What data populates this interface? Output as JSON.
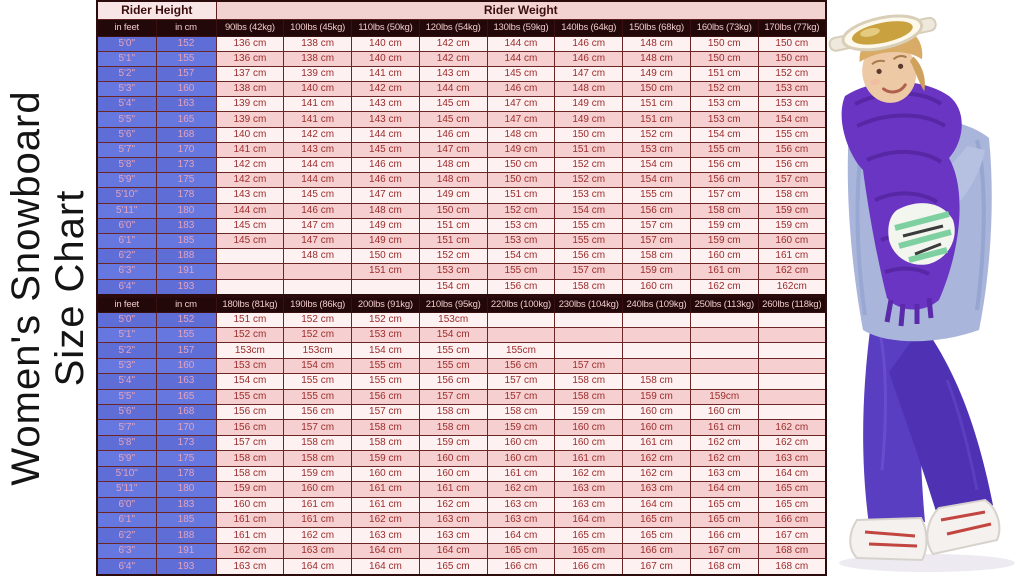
{
  "title": {
    "full": "Women's Snowboard Size Chart",
    "line1": "Women's Snowboard",
    "line2": "Size Chart"
  },
  "colors": {
    "header_dark_bg": "#220808",
    "header_dark_text": "#efc9c9",
    "banner_height_bg": "#f8e6e6",
    "banner_weight_bg": "#f3d2d2",
    "height_cell_blue": "#5e6ed6",
    "height_cell_text": "#e5a2bd",
    "row_light": "#fdf1f1",
    "row_pink": "#f6d0d0",
    "value_text": "#9c2c2c",
    "grid_border": "#6b2525",
    "pants_purple": "#5a3ec2",
    "scarf_purple": "#6a35c2",
    "jacket_periwinkle": "#a9b5da"
  },
  "chart_data": [
    {
      "type": "table",
      "banner": {
        "height_label": "Rider Height",
        "weight_label": "Rider Weight"
      },
      "columns": [
        "in feet",
        "in cm",
        "90lbs (42kg)",
        "100lbs (45kg)",
        "110lbs (50kg)",
        "120lbs (54kg)",
        "130lbs (59kg)",
        "140lbs (64kg)",
        "150lbs (68kg)",
        "160lbs (73kg)",
        "170lbs (77kg)"
      ],
      "rows": [
        [
          "5'0\"",
          "152",
          "136 cm",
          "138 cm",
          "140 cm",
          "142 cm",
          "144 cm",
          "146 cm",
          "148 cm",
          "150 cm",
          "150 cm"
        ],
        [
          "5'1\"",
          "155",
          "136 cm",
          "138 cm",
          "140 cm",
          "142 cm",
          "144 cm",
          "146 cm",
          "148 cm",
          "150 cm",
          "150 cm"
        ],
        [
          "5'2\"",
          "157",
          "137 cm",
          "139 cm",
          "141 cm",
          "143 cm",
          "145 cm",
          "147 cm",
          "149 cm",
          "151 cm",
          "152 cm"
        ],
        [
          "5'3\"",
          "160",
          "138 cm",
          "140 cm",
          "142 cm",
          "144 cm",
          "146 cm",
          "148 cm",
          "150 cm",
          "152 cm",
          "153 cm"
        ],
        [
          "5'4\"",
          "163",
          "139 cm",
          "141 cm",
          "143 cm",
          "145 cm",
          "147 cm",
          "149 cm",
          "151 cm",
          "153 cm",
          "153 cm"
        ],
        [
          "5'5\"",
          "165",
          "139 cm",
          "141 cm",
          "143 cm",
          "145 cm",
          "147 cm",
          "149 cm",
          "151 cm",
          "153 cm",
          "154 cm"
        ],
        [
          "5'6\"",
          "168",
          "140 cm",
          "142 cm",
          "144 cm",
          "146 cm",
          "148 cm",
          "150 cm",
          "152 cm",
          "154 cm",
          "155 cm"
        ],
        [
          "5'7\"",
          "170",
          "141 cm",
          "143 cm",
          "145 cm",
          "147 cm",
          "149 cm",
          "151 cm",
          "153 cm",
          "155 cm",
          "156 cm"
        ],
        [
          "5'8\"",
          "173",
          "142 cm",
          "144 cm",
          "146 cm",
          "148 cm",
          "150 cm",
          "152 cm",
          "154 cm",
          "156 cm",
          "156 cm"
        ],
        [
          "5'9\"",
          "175",
          "142 cm",
          "144 cm",
          "146 cm",
          "148 cm",
          "150 cm",
          "152 cm",
          "154 cm",
          "156 cm",
          "157 cm"
        ],
        [
          "5'10\"",
          "178",
          "143 cm",
          "145 cm",
          "147 cm",
          "149 cm",
          "151 cm",
          "153 cm",
          "155 cm",
          "157 cm",
          "158 cm"
        ],
        [
          "5'11\"",
          "180",
          "144 cm",
          "146 cm",
          "148 cm",
          "150 cm",
          "152 cm",
          "154 cm",
          "156 cm",
          "158 cm",
          "159 cm"
        ],
        [
          "6'0\"",
          "183",
          "145 cm",
          "147 cm",
          "149 cm",
          "151 cm",
          "153 cm",
          "155 cm",
          "157 cm",
          "159 cm",
          "159 cm"
        ],
        [
          "6'1\"",
          "185",
          "145 cm",
          "147 cm",
          "149 cm",
          "151 cm",
          "153 cm",
          "155 cm",
          "157 cm",
          "159 cm",
          "160 cm"
        ],
        [
          "6'2\"",
          "188",
          "",
          "148 cm",
          "150 cm",
          "152 cm",
          "154 cm",
          "156 cm",
          "158 cm",
          "160 cm",
          "161 cm"
        ],
        [
          "6'3\"",
          "191",
          "",
          "",
          "151 cm",
          "153 cm",
          "155 cm",
          "157 cm",
          "159 cm",
          "161 cm",
          "162 cm"
        ],
        [
          "6'4\"",
          "193",
          "",
          "",
          "",
          "154 cm",
          "156 cm",
          "158 cm",
          "160 cm",
          "162 cm",
          "162cm"
        ]
      ]
    },
    {
      "type": "table",
      "columns": [
        "in feet",
        "in cm",
        "180lbs (81kg)",
        "190lbs (86kg)",
        "200lbs (91kg)",
        "210lbs (95kg)",
        "220lbs (100kg)",
        "230lbs (104kg)",
        "240lbs (109kg)",
        "250lbs (113kg)",
        "260lbs (118kg)"
      ],
      "rows": [
        [
          "5'0\"",
          "152",
          "151 cm",
          "152 cm",
          "152 cm",
          "153cm",
          "",
          "",
          "",
          "",
          ""
        ],
        [
          "5'1\"",
          "155",
          "152 cm",
          "152 cm",
          "153 cm",
          "154 cm",
          "",
          "",
          "",
          "",
          ""
        ],
        [
          "5'2\"",
          "157",
          "153cm",
          "153cm",
          "154 cm",
          "155 cm",
          "155cm",
          "",
          "",
          "",
          ""
        ],
        [
          "5'3\"",
          "160",
          "153 cm",
          "154 cm",
          "155 cm",
          "155 cm",
          "156 cm",
          "157 cm",
          "",
          "",
          ""
        ],
        [
          "5'4\"",
          "163",
          "154 cm",
          "155 cm",
          "155 cm",
          "156 cm",
          "157 cm",
          "158 cm",
          "158 cm",
          "",
          ""
        ],
        [
          "5'5\"",
          "165",
          "155 cm",
          "155 cm",
          "156 cm",
          "157 cm",
          "157 cm",
          "158 cm",
          "159 cm",
          "159cm",
          ""
        ],
        [
          "5'6\"",
          "168",
          "156 cm",
          "156 cm",
          "157 cm",
          "158 cm",
          "158 cm",
          "159 cm",
          "160 cm",
          "160 cm",
          ""
        ],
        [
          "5'7\"",
          "170",
          "156 cm",
          "157 cm",
          "158 cm",
          "158 cm",
          "159 cm",
          "160 cm",
          "160 cm",
          "161 cm",
          "162 cm"
        ],
        [
          "5'8\"",
          "173",
          "157 cm",
          "158 cm",
          "158 cm",
          "159 cm",
          "160 cm",
          "160 cm",
          "161 cm",
          "162 cm",
          "162 cm"
        ],
        [
          "5'9\"",
          "175",
          "158 cm",
          "158 cm",
          "159 cm",
          "160 cm",
          "160 cm",
          "161 cm",
          "162 cm",
          "162 cm",
          "163 cm"
        ],
        [
          "5'10\"",
          "178",
          "158 cm",
          "159 cm",
          "160 cm",
          "160 cm",
          "161 cm",
          "162 cm",
          "162 cm",
          "163 cm",
          "164 cm"
        ],
        [
          "5'11\"",
          "180",
          "159 cm",
          "160 cm",
          "161 cm",
          "161 cm",
          "162 cm",
          "163 cm",
          "163 cm",
          "164 cm",
          "165 cm"
        ],
        [
          "6'0\"",
          "183",
          "160 cm",
          "161 cm",
          "161 cm",
          "162 cm",
          "163 cm",
          "163 cm",
          "164 cm",
          "165 cm",
          "165 cm"
        ],
        [
          "6'1\"",
          "185",
          "161 cm",
          "161 cm",
          "162 cm",
          "163 cm",
          "163 cm",
          "164 cm",
          "165 cm",
          "165 cm",
          "166 cm"
        ],
        [
          "6'2\"",
          "188",
          "161 cm",
          "162 cm",
          "163 cm",
          "163 cm",
          "164 cm",
          "165 cm",
          "165 cm",
          "166 cm",
          "167 cm"
        ],
        [
          "6'3\"",
          "191",
          "162 cm",
          "163 cm",
          "164 cm",
          "164 cm",
          "165 cm",
          "165 cm",
          "166 cm",
          "167 cm",
          "168 cm"
        ],
        [
          "6'4\"",
          "193",
          "163 cm",
          "164 cm",
          "164 cm",
          "165 cm",
          "166 cm",
          "166 cm",
          "167 cm",
          "168 cm",
          "168 cm"
        ]
      ]
    }
  ]
}
